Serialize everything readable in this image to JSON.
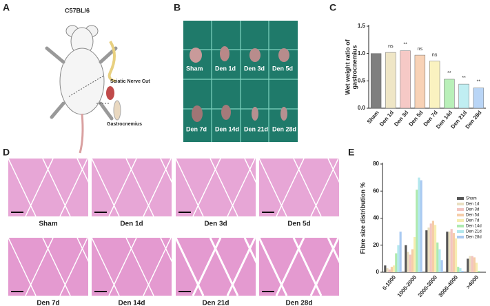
{
  "panels": [
    "A",
    "B",
    "C",
    "D",
    "E"
  ],
  "schematic": {
    "strain": "C57BL/6",
    "nerve": "Sciatic Nerve Cut",
    "muscle": "Gastrocnemius"
  },
  "photo_labels": [
    "Sham",
    "Den 1d",
    "Den 3d",
    "Den 5d",
    "Den 7d",
    "Den 14d",
    "Den 21d",
    "Den 28d"
  ],
  "histology_labels": [
    "Sham",
    "Den 1d",
    "Den 3d",
    "Den 5d",
    "Den 7d",
    "Den 14d",
    "Den 21d",
    "Den 28d"
  ],
  "chart_data": [
    {
      "type": "bar",
      "y_label": [
        "Wet weight ratio of",
        "gastrocnemius"
      ],
      "categories": [
        "Sham",
        "Den 1d",
        "Den 3d",
        "Den 5d",
        "Den 7d",
        "Den 14d",
        "Den 21d",
        "Den 28d"
      ],
      "values": [
        1.0,
        1.02,
        1.05,
        0.97,
        0.86,
        0.53,
        0.44,
        0.37
      ],
      "colors": [
        "#7f7f7f",
        "#efe6c6",
        "#f6c9c6",
        "#f8d2b6",
        "#faf2c0",
        "#b9f0b9",
        "#c0eef2",
        "#b9d5f6"
      ],
      "annotations": [
        null,
        "ns",
        "**",
        "ns",
        "ns",
        "**",
        "**",
        "**"
      ],
      "ylim": [
        0,
        1.5
      ],
      "yticks": [
        {
          "value": 0,
          "label": "0.0"
        },
        0.5,
        {
          "value": 1,
          "label": "1.0"
        },
        1.5
      ]
    },
    {
      "type": "grouped_bar",
      "y_label": "Fibre size distribution %",
      "categories": [
        "0-1000",
        "1000-2000",
        "2000-3000",
        "3000-4000",
        ">4000"
      ],
      "series": [
        {
          "name": "Sham",
          "color": "#555555",
          "values": [
            5,
            20,
            31,
            30,
            10
          ]
        },
        {
          "name": "Den 1d",
          "color": "#e9dfc0",
          "values": [
            3,
            15,
            33,
            30,
            12
          ]
        },
        {
          "name": "Den 3d",
          "color": "#f3c4c0",
          "values": [
            2,
            13,
            36,
            32,
            12
          ]
        },
        {
          "name": "Den 5d",
          "color": "#f6cda8",
          "values": [
            4,
            17,
            38,
            29,
            11
          ]
        },
        {
          "name": "Den 7d",
          "color": "#f6edb0",
          "values": [
            5,
            26,
            35,
            25,
            7
          ]
        },
        {
          "name": "Den 14d",
          "color": "#aeeaae",
          "values": [
            14,
            61,
            22,
            4,
            1
          ]
        },
        {
          "name": "Den 21d",
          "color": "#b3e8ee",
          "values": [
            20,
            70,
            17,
            3,
            0
          ]
        },
        {
          "name": "Den 28d",
          "color": "#aacaf2",
          "values": [
            30,
            68,
            9,
            1,
            0
          ]
        }
      ],
      "ylim": [
        0,
        80
      ],
      "yticks": [
        0,
        20,
        40,
        60,
        80
      ],
      "legend": "top-right"
    }
  ]
}
